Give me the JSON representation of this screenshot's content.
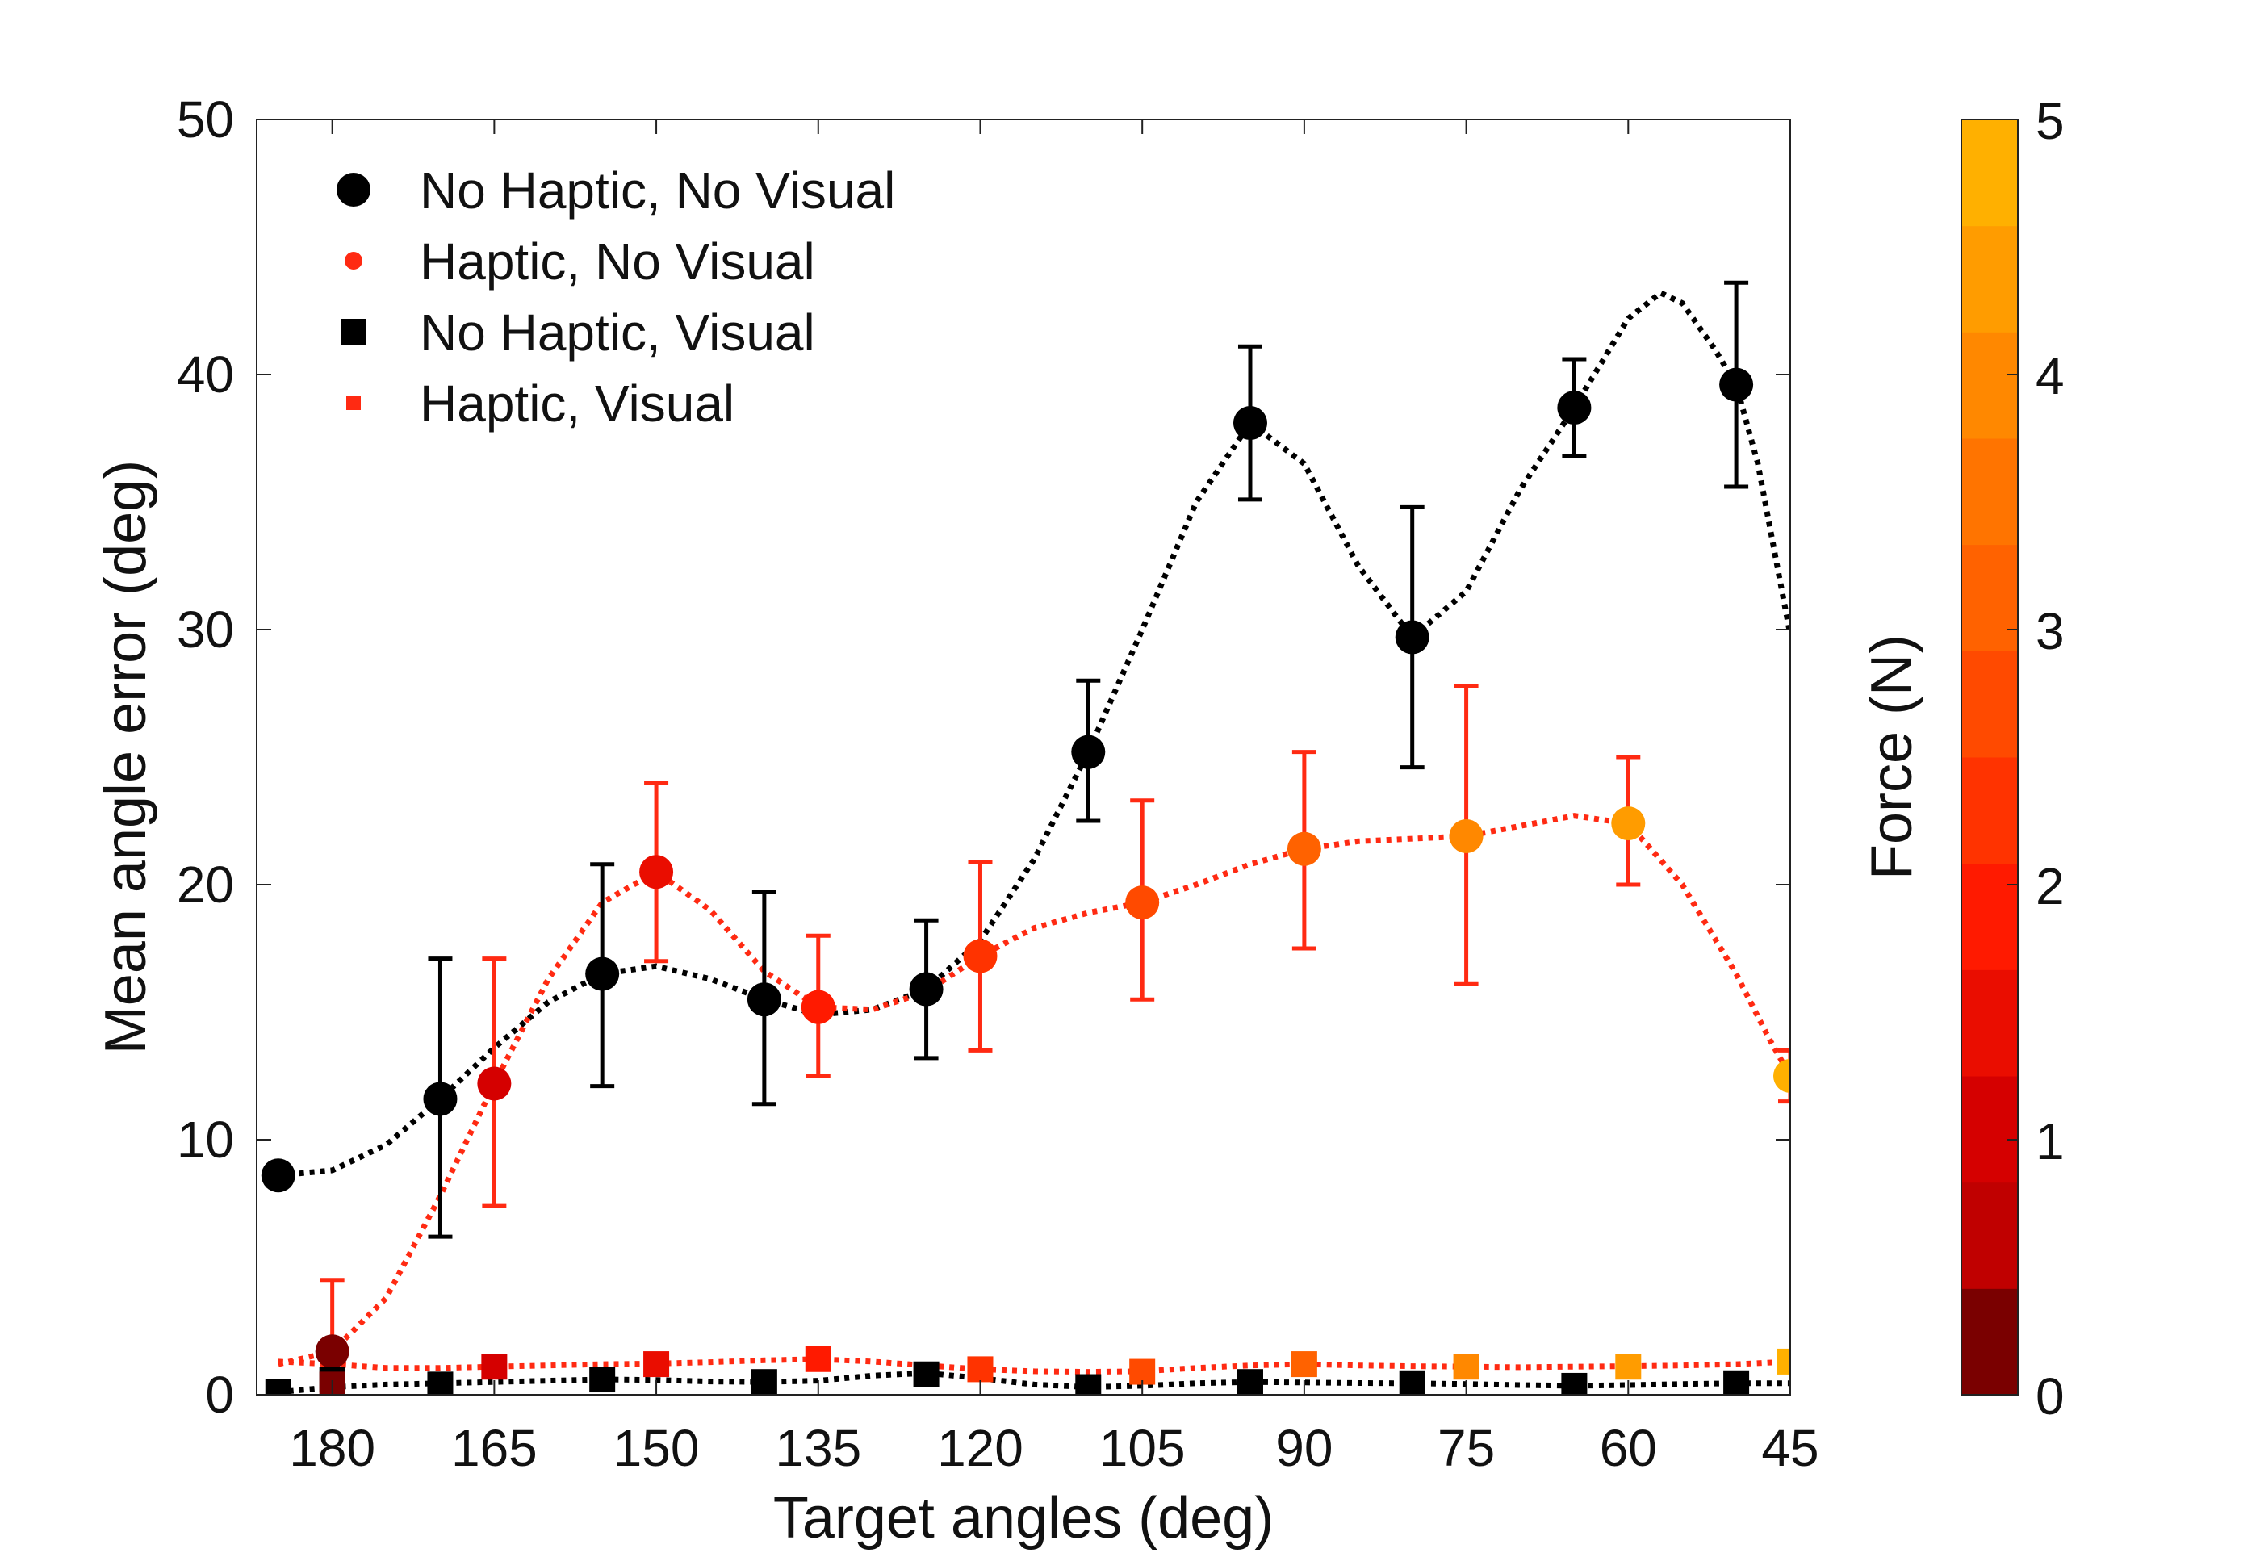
{
  "chart_data": {
    "type": "scatter",
    "xlabel": "Target angles (deg)",
    "ylabel": "Mean angle error (deg)",
    "xlim": [
      45,
      187
    ],
    "x_reversed": true,
    "ylim": [
      0,
      50
    ],
    "xticks": [
      180,
      165,
      150,
      135,
      120,
      105,
      90,
      75,
      60,
      45
    ],
    "yticks": [
      0,
      10,
      20,
      30,
      40,
      50
    ],
    "grid": false,
    "legend_position": "top-left",
    "colors": {
      "black": "#000000",
      "red": "#ff2a12"
    },
    "series": [
      {
        "name": "No Haptic, No Visual",
        "marker": "circle-large",
        "color": "#000000",
        "x": [
          185,
          170,
          155,
          140,
          125,
          110,
          95,
          80,
          65,
          50
        ],
        "y": [
          8.6,
          11.6,
          16.5,
          15.5,
          15.9,
          25.2,
          38.1,
          29.7,
          38.7,
          39.6
        ],
        "err_low": [
          null,
          6.2,
          12.1,
          11.4,
          13.2,
          22.5,
          35.1,
          24.6,
          36.8,
          35.6
        ],
        "err_high": [
          null,
          17.1,
          20.8,
          19.7,
          18.6,
          28.0,
          41.1,
          34.8,
          40.6,
          43.6
        ],
        "curve_x": [
          185,
          180,
          175,
          170,
          165,
          160,
          155,
          150,
          145,
          140,
          135,
          130,
          125,
          120,
          115,
          110,
          105,
          100,
          95,
          90,
          85,
          80,
          75,
          70,
          65,
          60,
          57,
          55,
          52,
          50,
          48,
          45
        ],
        "curve_y": [
          8.6,
          8.8,
          9.8,
          11.6,
          13.6,
          15.4,
          16.5,
          16.8,
          16.3,
          15.5,
          14.9,
          15.1,
          15.9,
          17.8,
          21.0,
          25.2,
          30.0,
          35.0,
          38.1,
          36.5,
          32.5,
          29.7,
          31.5,
          35.5,
          38.7,
          42.2,
          43.2,
          42.8,
          41.0,
          39.6,
          36.5,
          29.8
        ]
      },
      {
        "name": "Haptic, No Visual",
        "marker": "circle-small",
        "color": "#ff2a12",
        "x": [
          180,
          165,
          150,
          135,
          120,
          105,
          90,
          75,
          60,
          45
        ],
        "y": [
          1.7,
          12.2,
          20.5,
          15.2,
          17.2,
          19.3,
          21.4,
          21.9,
          22.4,
          12.5
        ],
        "force": [
          0.1,
          1.2,
          1.5,
          2.0,
          2.4,
          2.6,
          3.3,
          3.8,
          4.3,
          4.9
        ],
        "err_low": [
          0.0,
          7.4,
          17.0,
          12.5,
          13.5,
          15.5,
          17.5,
          16.1,
          20.0,
          11.5
        ],
        "err_high": [
          4.5,
          17.1,
          24.0,
          18.0,
          20.9,
          23.3,
          25.2,
          27.8,
          25.0,
          13.5
        ],
        "curve_x": [
          185,
          180,
          175,
          170,
          165,
          160,
          155,
          150,
          145,
          140,
          135,
          130,
          125,
          120,
          115,
          110,
          105,
          100,
          95,
          90,
          85,
          80,
          75,
          70,
          65,
          60,
          55,
          50,
          47,
          45
        ],
        "curve_y": [
          1.2,
          1.7,
          3.8,
          7.8,
          12.2,
          16.3,
          19.3,
          20.5,
          19.0,
          16.6,
          15.2,
          15.1,
          15.8,
          17.2,
          18.3,
          18.9,
          19.3,
          20.0,
          20.8,
          21.4,
          21.7,
          21.8,
          21.9,
          22.3,
          22.7,
          22.4,
          20.0,
          16.5,
          14.0,
          12.5
        ]
      },
      {
        "name": "No Haptic, Visual",
        "marker": "square-large",
        "color": "#000000",
        "x": [
          185,
          180,
          170,
          155,
          140,
          125,
          110,
          95,
          80,
          65,
          50
        ],
        "y": [
          0.1,
          0.6,
          0.4,
          0.6,
          0.5,
          0.8,
          0.3,
          0.5,
          0.45,
          0.35,
          0.45
        ],
        "curve_x": [
          185,
          180,
          175,
          170,
          165,
          160,
          155,
          150,
          145,
          140,
          135,
          130,
          125,
          120,
          115,
          110,
          105,
          100,
          95,
          90,
          85,
          80,
          75,
          70,
          65,
          60,
          55,
          50,
          45
        ],
        "curve_y": [
          0.1,
          0.3,
          0.4,
          0.45,
          0.5,
          0.55,
          0.6,
          0.58,
          0.52,
          0.5,
          0.55,
          0.75,
          0.85,
          0.65,
          0.4,
          0.3,
          0.35,
          0.45,
          0.5,
          0.48,
          0.46,
          0.45,
          0.42,
          0.38,
          0.35,
          0.38,
          0.42,
          0.45,
          0.45
        ]
      },
      {
        "name": "Haptic, Visual",
        "marker": "square-small",
        "color": "#ff2a12",
        "x": [
          180,
          165,
          150,
          135,
          120,
          105,
          90,
          75,
          60,
          45
        ],
        "y": [
          0.4,
          1.1,
          1.2,
          1.4,
          1.0,
          0.9,
          1.2,
          1.1,
          1.1,
          1.3
        ],
        "force": [
          0.1,
          1.2,
          1.5,
          2.0,
          2.4,
          2.6,
          3.3,
          3.8,
          4.3,
          4.9
        ],
        "curve_x": [
          185,
          180,
          175,
          170,
          165,
          160,
          155,
          150,
          145,
          140,
          135,
          130,
          125,
          120,
          115,
          110,
          105,
          100,
          95,
          90,
          85,
          80,
          75,
          70,
          65,
          60,
          55,
          50,
          45
        ],
        "curve_y": [
          1.3,
          1.2,
          1.05,
          1.05,
          1.1,
          1.15,
          1.2,
          1.22,
          1.28,
          1.35,
          1.4,
          1.3,
          1.15,
          1.0,
          0.92,
          0.9,
          0.92,
          1.05,
          1.15,
          1.2,
          1.15,
          1.12,
          1.1,
          1.08,
          1.1,
          1.12,
          1.15,
          1.2,
          1.3
        ]
      }
    ],
    "colorbar": {
      "label": "Force (N)",
      "range": [
        0,
        5
      ],
      "ticks": [
        0,
        1,
        2,
        3,
        4,
        5
      ],
      "colors": [
        "#7a0000",
        "#c00000",
        "#d50000",
        "#ea0d00",
        "#ff1a00",
        "#ff3300",
        "#ff4a00",
        "#ff6200",
        "#ff7400",
        "#ff8800",
        "#ff9c00",
        "#ffb000"
      ]
    }
  }
}
